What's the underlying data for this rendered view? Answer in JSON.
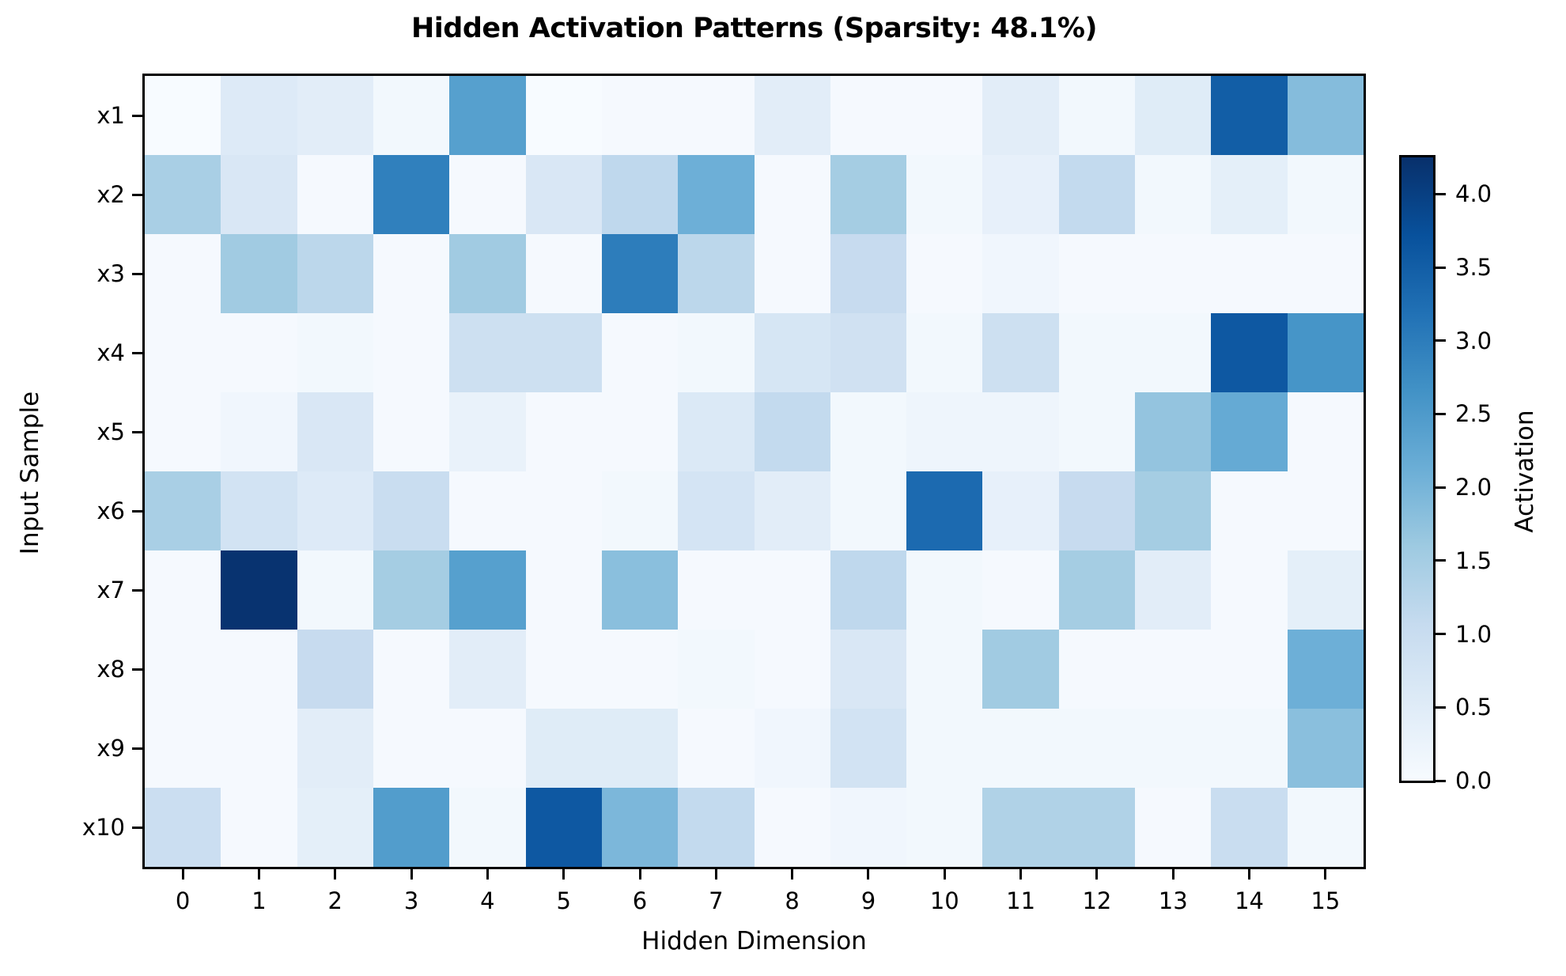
{
  "figure": {
    "title": "Hidden Activation Patterns (Sparsity: 48.1%)"
  },
  "chart_data": {
    "type": "heatmap",
    "title": "Hidden Activation Patterns (Sparsity: 48.1%)",
    "xlabel": "Hidden Dimension",
    "ylabel": "Input Sample",
    "x_ticks": [
      "0",
      "1",
      "2",
      "3",
      "4",
      "5",
      "6",
      "7",
      "8",
      "9",
      "10",
      "11",
      "12",
      "13",
      "14",
      "15"
    ],
    "y_ticks": [
      "x1",
      "x2",
      "x3",
      "x4",
      "x5",
      "x6",
      "x7",
      "x8",
      "x9",
      "x10"
    ],
    "colormap": "Blues",
    "grid": false,
    "values_by_row": [
      [
        0.0,
        0.55,
        0.45,
        0.1,
        2.4,
        0.0,
        0.05,
        0.05,
        0.45,
        0.05,
        0.05,
        0.45,
        0.1,
        0.5,
        3.5,
        1.85
      ],
      [
        1.45,
        0.65,
        0.05,
        2.95,
        0.05,
        0.65,
        1.15,
        2.1,
        0.05,
        1.5,
        0.1,
        0.35,
        1.1,
        0.1,
        0.4,
        0.1
      ],
      [
        0.05,
        1.55,
        1.2,
        0.05,
        1.55,
        0.05,
        3.0,
        1.2,
        0.05,
        1.05,
        0.05,
        0.15,
        0.05,
        0.05,
        0.05,
        0.05
      ],
      [
        0.05,
        0.05,
        0.1,
        0.05,
        0.9,
        0.9,
        0.05,
        0.1,
        0.7,
        0.85,
        0.1,
        0.9,
        0.1,
        0.1,
        3.6,
        2.6
      ],
      [
        0.05,
        0.15,
        0.65,
        0.05,
        0.3,
        0.05,
        0.05,
        0.6,
        1.1,
        0.1,
        0.2,
        0.2,
        0.1,
        1.7,
        2.2,
        0.05
      ],
      [
        1.45,
        0.8,
        0.55,
        1.0,
        0.05,
        0.05,
        0.1,
        0.75,
        0.45,
        0.1,
        3.3,
        0.35,
        1.05,
        1.5,
        0.05,
        0.05
      ],
      [
        0.05,
        4.2,
        0.1,
        1.5,
        2.4,
        0.05,
        1.8,
        0.05,
        0.05,
        1.15,
        0.1,
        0.05,
        1.5,
        0.45,
        0.05,
        0.4
      ],
      [
        0.05,
        0.05,
        1.05,
        0.05,
        0.45,
        0.05,
        0.05,
        0.1,
        0.05,
        0.65,
        0.1,
        1.55,
        0.05,
        0.05,
        0.05,
        2.1
      ],
      [
        0.05,
        0.05,
        0.45,
        0.05,
        0.05,
        0.5,
        0.5,
        0.05,
        0.15,
        0.8,
        0.1,
        0.1,
        0.1,
        0.1,
        0.1,
        1.8
      ],
      [
        0.95,
        0.05,
        0.4,
        2.45,
        0.1,
        3.6,
        1.95,
        1.1,
        0.05,
        0.15,
        0.1,
        1.35,
        1.35,
        0.05,
        1.0,
        0.1
      ]
    ],
    "colorbar": {
      "label": "Activation",
      "tick_labels": [
        "0.0",
        "0.5",
        "1.0",
        "1.5",
        "2.0",
        "2.5",
        "3.0",
        "3.5",
        "4.0"
      ],
      "tick_values": [
        0.0,
        0.5,
        1.0,
        1.5,
        2.0,
        2.5,
        3.0,
        3.5,
        4.0
      ],
      "vmin": 0.0,
      "vmax": 4.25
    }
  }
}
